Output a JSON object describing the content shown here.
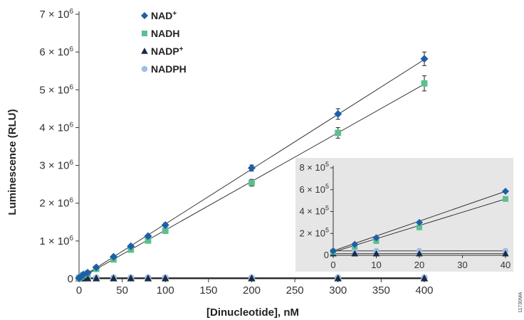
{
  "chart_data": {
    "type": "scatter",
    "xlabel": "[Dinucleotide], nM",
    "ylabel": "Luminescence (RLU)",
    "xlim": [
      0,
      400
    ],
    "ylim": [
      0,
      7000000
    ],
    "x_ticks": [
      "0",
      "50",
      "100",
      "150",
      "200",
      "250",
      "300",
      "350",
      "400"
    ],
    "y_ticks": [
      {
        "coef": "0",
        "exp": ""
      },
      {
        "coef": "1 × 10",
        "exp": "6"
      },
      {
        "coef": "2 × 10",
        "exp": "6"
      },
      {
        "coef": "3 × 10",
        "exp": "6"
      },
      {
        "coef": "4 × 10",
        "exp": "6"
      },
      {
        "coef": "5 × 10",
        "exp": "6"
      },
      {
        "coef": "6 × 10",
        "exp": "6"
      },
      {
        "coef": "7 × 10",
        "exp": "6"
      }
    ],
    "legend_position": "top-left",
    "grid": false,
    "series": [
      {
        "name": "NAD+",
        "marker": "diamond",
        "color": "#1f5ea8",
        "x": [
          0,
          2.5,
          5,
          10,
          20,
          40,
          60,
          80,
          100,
          200,
          300,
          400
        ],
        "y": [
          20000,
          60000,
          110000,
          160000,
          300000,
          580000,
          860000,
          1130000,
          1420000,
          2930000,
          4360000,
          5820000
        ],
        "err": [
          0,
          0,
          0,
          0,
          0,
          0,
          0,
          0,
          50000,
          80000,
          140000,
          180000
        ]
      },
      {
        "name": "NADH",
        "marker": "square",
        "color": "#5cbf8f",
        "x": [
          0,
          2.5,
          5,
          10,
          20,
          40,
          60,
          80,
          100,
          200,
          300,
          400
        ],
        "y": [
          20000,
          55000,
          100000,
          140000,
          260000,
          510000,
          770000,
          1010000,
          1270000,
          2540000,
          3860000,
          5170000
        ],
        "err": [
          0,
          0,
          0,
          0,
          0,
          0,
          0,
          0,
          70000,
          90000,
          140000,
          200000
        ]
      },
      {
        "name": "NADP+",
        "marker": "triangle",
        "color": "#1a2a44",
        "x": [
          0,
          2.5,
          5,
          10,
          20,
          40,
          60,
          80,
          100,
          200,
          300,
          400
        ],
        "y": [
          10000,
          10000,
          10000,
          10000,
          10000,
          10000,
          10000,
          10000,
          10000,
          10000,
          10000,
          10000
        ],
        "err": []
      },
      {
        "name": "NADPH",
        "marker": "circle",
        "color": "#9dbde6",
        "x": [
          0,
          2.5,
          5,
          10,
          20,
          40,
          60,
          80,
          100,
          200,
          300,
          400
        ],
        "y": [
          30000,
          30000,
          30000,
          30000,
          30000,
          30000,
          30000,
          30000,
          30000,
          30000,
          30000,
          30000
        ],
        "err": []
      }
    ],
    "fit_lines": [
      {
        "series": "NAD+",
        "y_at_0": 0,
        "y_at_400": 5800000
      },
      {
        "series": "NADH",
        "y_at_0": 0,
        "y_at_400": 5150000
      }
    ],
    "inset": {
      "type": "scatter",
      "background": "#e6e6e6",
      "xlim": [
        0,
        40
      ],
      "ylim": [
        0,
        800000
      ],
      "x_ticks": [
        "0",
        "10",
        "20",
        "30",
        "40"
      ],
      "y_ticks": [
        {
          "coef": "0",
          "exp": ""
        },
        {
          "coef": "2 × 10",
          "exp": "5"
        },
        {
          "coef": "4 × 10",
          "exp": "5"
        },
        {
          "coef": "6 × 10",
          "exp": "5"
        },
        {
          "coef": "8 × 10",
          "exp": "5"
        }
      ],
      "series": [
        {
          "name": "NAD+",
          "x": [
            0,
            5,
            10,
            20,
            40
          ],
          "y": [
            40000,
            100000,
            160000,
            300000,
            585000
          ]
        },
        {
          "name": "NADH",
          "x": [
            0,
            5,
            10,
            20,
            40
          ],
          "y": [
            30000,
            80000,
            130000,
            255000,
            515000
          ]
        },
        {
          "name": "NADP+",
          "x": [
            0,
            5,
            10,
            20,
            40
          ],
          "y": [
            15000,
            15000,
            15000,
            15000,
            15000
          ]
        },
        {
          "name": "NADPH",
          "x": [
            0,
            5,
            10,
            20,
            40
          ],
          "y": [
            40000,
            40000,
            40000,
            40000,
            40000
          ]
        }
      ]
    }
  },
  "legend": [
    {
      "name": "NAD",
      "sup": "+",
      "marker": "diamond",
      "color": "#1f5ea8"
    },
    {
      "name": "NADH",
      "sup": "",
      "marker": "square",
      "color": "#5cbf8f"
    },
    {
      "name": "NADP",
      "sup": "+",
      "marker": "triangle",
      "color": "#1a2a44"
    },
    {
      "name": "NADPH",
      "sup": "",
      "marker": "circle",
      "color": "#9dbde6"
    }
  ],
  "figure_code": "11730MA"
}
